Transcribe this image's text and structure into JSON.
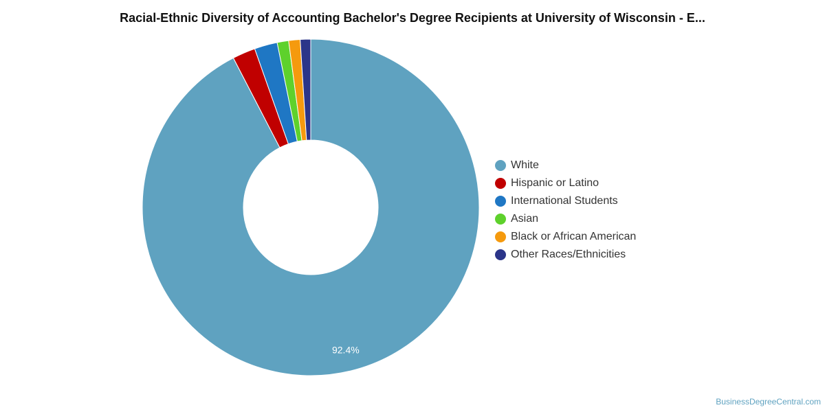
{
  "chart_data": {
    "type": "pie",
    "title": "Racial-Ethnic Diversity of Accounting Bachelor's Degree Recipients at University of Wisconsin - E...",
    "donut": true,
    "legend_position": "right",
    "slices": [
      {
        "label": "White",
        "value": 92.4,
        "display": "92.4%",
        "color": "#5fa2c0"
      },
      {
        "label": "Hispanic or Latino",
        "value": 2.2,
        "display": "",
        "color": "#c00000"
      },
      {
        "label": "International Students",
        "value": 2.2,
        "display": "",
        "color": "#1f77c4"
      },
      {
        "label": "Asian",
        "value": 1.1,
        "display": "",
        "color": "#5ed12c"
      },
      {
        "label": "Black or African American",
        "value": 1.1,
        "display": "",
        "color": "#f59a0e"
      },
      {
        "label": "Other Races/Ethnicities",
        "value": 1.0,
        "display": "",
        "color": "#2b3589"
      }
    ]
  },
  "credit": "BusinessDegreeCentral.com"
}
